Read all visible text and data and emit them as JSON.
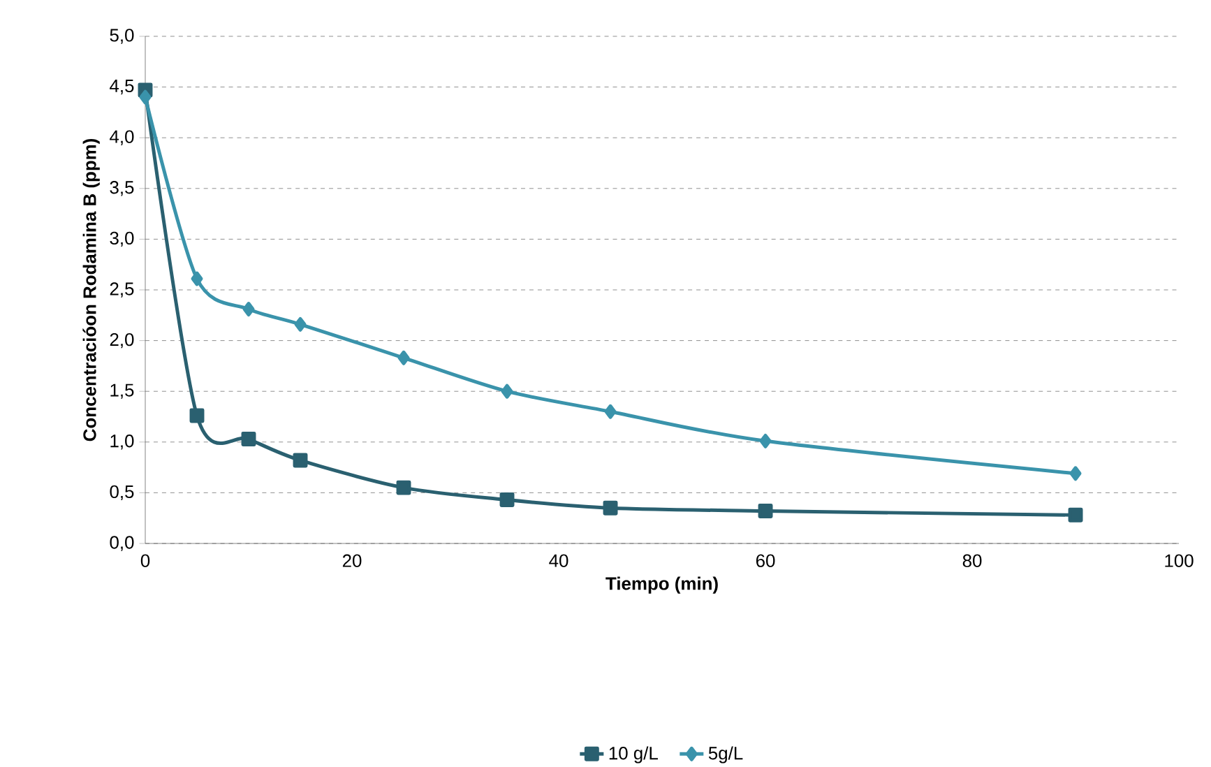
{
  "chart_data": {
    "type": "line",
    "xlabel": "Tiempo (min)",
    "ylabel": "Concentracióon Rodamina B (ppm)",
    "x": [
      0,
      5,
      10,
      15,
      25,
      35,
      45,
      60,
      90
    ],
    "series": [
      {
        "name": "10 g/L",
        "color": "#2a6070",
        "marker": "square",
        "values": [
          4.47,
          1.26,
          1.03,
          0.82,
          0.55,
          0.43,
          0.35,
          0.32,
          0.28
        ]
      },
      {
        "name": "5g/L",
        "color": "#3a93ab",
        "marker": "diamond",
        "values": [
          4.4,
          2.61,
          2.31,
          2.16,
          1.83,
          1.5,
          1.3,
          1.01,
          0.69
        ]
      }
    ],
    "xlim": [
      0,
      100
    ],
    "xticks": [
      0,
      20,
      40,
      60,
      80,
      100
    ],
    "ylim": [
      0,
      5
    ],
    "yticks": [
      {
        "value": 0,
        "label": "0,0"
      },
      {
        "value": 0.5,
        "label": "0,5"
      },
      {
        "value": 1,
        "label": "1,0"
      },
      {
        "value": 1.5,
        "label": "1,5"
      },
      {
        "value": 2,
        "label": "2,0"
      },
      {
        "value": 2.5,
        "label": "2,5"
      },
      {
        "value": 3,
        "label": "3,0"
      },
      {
        "value": 3.5,
        "label": "3,5"
      },
      {
        "value": 4,
        "label": "4,0"
      },
      {
        "value": 4.5,
        "label": "4,5"
      },
      {
        "value": 5,
        "label": "5,0"
      }
    ],
    "grid": "y",
    "legend": "bottom",
    "line_style": "solid"
  }
}
